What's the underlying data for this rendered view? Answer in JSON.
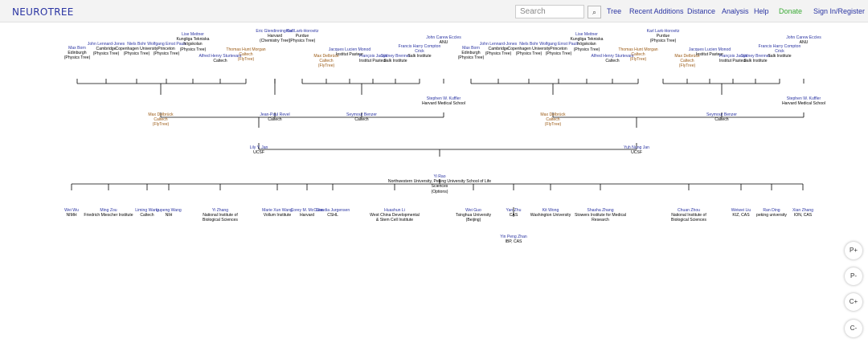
{
  "header": {
    "brand": "NEUROTREE",
    "search_placeholder": "Search",
    "nav": [
      "Tree",
      "Recent Additions",
      "Distance",
      "Analysis",
      "Help",
      "Donate",
      "Sign In/Register"
    ]
  },
  "zoom_controls": [
    "P+",
    "P-",
    "C+",
    "C-"
  ],
  "colors": {
    "link": "#2b35a3",
    "line": "#000000",
    "orange": "#9b5a14",
    "donate": "#3aaa35"
  },
  "tree": {
    "top_row": [
      {
        "name": "Max Born",
        "inst": "Edinburgh",
        "tag": "(Physics Tree)"
      },
      {
        "name": "John Lennard-Jones",
        "inst": "Cambridge",
        "tag": "(Physics Tree)"
      },
      {
        "name": "Niels Bohr",
        "inst": "Copenhagen University",
        "tag": "(Physics Tree)"
      },
      {
        "name": "Wolfgang Ernst Pauli",
        "inst": "Princeton",
        "tag": "(Physics Tree)"
      },
      {
        "name": "Lise Meitner",
        "inst": "Kungliga Tekniska högskolan",
        "tag": "(Physics Tree)"
      },
      {
        "name": "Alfred Henry Sturtevant",
        "inst": "Caltech",
        "tag": ""
      },
      {
        "name": "Thomas Hunt Morgan",
        "inst": "Caltech",
        "tag": "(FlyTree)",
        "orange": true
      },
      {
        "name": "Eric Glendinning Ball",
        "inst": "Harvard",
        "tag": "(Chemistry Tree)"
      },
      {
        "name": "Karl Lark-Horovitz",
        "inst": "Purdue",
        "tag": "(Physics Tree)"
      },
      {
        "name": "Max Delbrück",
        "inst": "Caltech",
        "tag": "(FlyTree)",
        "orange": true
      },
      {
        "name": "Jacques Lucien Monod",
        "inst": "Institut Pasteur",
        "tag": ""
      },
      {
        "name": "François Jacob",
        "inst": "Institut Pasteur",
        "tag": ""
      },
      {
        "name": "Sydney Brenner",
        "inst": "Salk Institute",
        "tag": ""
      },
      {
        "name": "Francis Harry Compton Crick",
        "inst": "Salk Institute",
        "tag": ""
      },
      {
        "name": "John Carew Eccles",
        "inst": "ANU",
        "tag": ""
      },
      {
        "name": "Max Born",
        "inst": "Edinburgh",
        "tag": "(Physics Tree)"
      },
      {
        "name": "John Lennard-Jones",
        "inst": "Cambridge",
        "tag": "(Physics Tree)"
      },
      {
        "name": "Niels Bohr",
        "inst": "Copenhagen University",
        "tag": "(Physics Tree)"
      },
      {
        "name": "Wolfgang Ernst Pauli",
        "inst": "Princeton",
        "tag": "(Physics Tree)"
      },
      {
        "name": "Lise Meitner",
        "inst": "Kungliga Tekniska högskolan",
        "tag": "(Physics Tree)"
      },
      {
        "name": "Alfred Henry Sturtevant",
        "inst": "Caltech",
        "tag": ""
      },
      {
        "name": "Thomas Hunt Morgan",
        "inst": "Caltech",
        "tag": "(FlyTree)",
        "orange": true
      },
      {
        "name": "Karl Lark-Horovitz",
        "inst": "Purdue",
        "tag": "(Physics Tree)"
      },
      {
        "name": "Max Delbrück",
        "inst": "Caltech",
        "tag": "(FlyTree)",
        "orange": true
      },
      {
        "name": "Jacques Lucien Monod",
        "inst": "Institut Pasteur",
        "tag": ""
      },
      {
        "name": "François Jacob",
        "inst": "Institut Pasteur",
        "tag": ""
      },
      {
        "name": "Sydney Brenner",
        "inst": "Salk Institute",
        "tag": ""
      },
      {
        "name": "Francis Harry Compton Crick",
        "inst": "Salk Institute",
        "tag": ""
      },
      {
        "name": "John Carew Eccles",
        "inst": "ANU",
        "tag": ""
      }
    ],
    "second_row": [
      {
        "name": "Max Delbrück",
        "inst": "Caltech",
        "tag": "(FlyTree)",
        "orange": true
      },
      {
        "name": "Jean-Paul Revel",
        "inst": "Caltech",
        "tag": ""
      },
      {
        "name": "Seymour Benzer",
        "inst": "Caltech",
        "tag": ""
      },
      {
        "name": "Stephen W. Kuffler",
        "inst": "Harvard Medical School",
        "tag": ""
      },
      {
        "name": "Max Delbrück",
        "inst": "Caltech",
        "tag": "(FlyTree)",
        "orange": true
      },
      {
        "name": "Seymour Benzer",
        "inst": "Caltech",
        "tag": ""
      },
      {
        "name": "Stephen W. Kuffler",
        "inst": "Harvard Medical School",
        "tag": ""
      }
    ],
    "parents": [
      {
        "name": "Lily Y. Jan",
        "inst": "UCSF",
        "tag": ""
      },
      {
        "name": "Yuh Nung Jan",
        "inst": "UCSF",
        "tag": ""
      }
    ],
    "focus": {
      "name": "Yi Rao",
      "inst": "Northwestern University, Peking University School of Life Sciences",
      "tag": "(Options)"
    },
    "children": [
      {
        "name": "Wei Wu",
        "inst": "NIMH",
        "tag": ""
      },
      {
        "name": "Ming Zou",
        "inst": "Friedrich Miescher Institute",
        "tag": ""
      },
      {
        "name": "Liming Wang",
        "inst": "Caltech",
        "tag": ""
      },
      {
        "name": "Lupeng Wang",
        "inst": "NIH",
        "tag": ""
      },
      {
        "name": "Yi Zhang",
        "inst": "National Institute of Biological Sciences",
        "tag": ""
      },
      {
        "name": "Marie Xun Wang",
        "inst": "Vollum Institute",
        "tag": ""
      },
      {
        "name": "Corey M. McCann",
        "inst": "Harvard",
        "tag": ""
      },
      {
        "name": "Claudia Jurgensen",
        "inst": "CSHL",
        "tag": ""
      },
      {
        "name": "Huashun Li",
        "inst": "West China Developmental & Stem Cell Institute",
        "tag": ""
      },
      {
        "name": "Wei Guo",
        "inst": "Tsinghua University (Beijing)",
        "tag": ""
      },
      {
        "name": "Yan Zhu",
        "inst": "CAS",
        "tag": ""
      },
      {
        "name": "Kit Wong",
        "inst": "Washington University",
        "tag": ""
      },
      {
        "name": "Shasha Zhang",
        "inst": "Stowers Institute for Medical Research",
        "tag": ""
      },
      {
        "name": "Chuan Zhou",
        "inst": "National Institute of Biological Sciences",
        "tag": ""
      },
      {
        "name": "Weiwei Liu",
        "inst": "KIZ, CAS",
        "tag": ""
      },
      {
        "name": "Ran Ding",
        "inst": "peking university",
        "tag": ""
      },
      {
        "name": "Xian Zhang",
        "inst": "ION, CAS",
        "tag": ""
      }
    ],
    "grandchild": {
      "name": "Yin Peng Zhan",
      "inst": "IBP, CAS",
      "tag": ""
    }
  }
}
